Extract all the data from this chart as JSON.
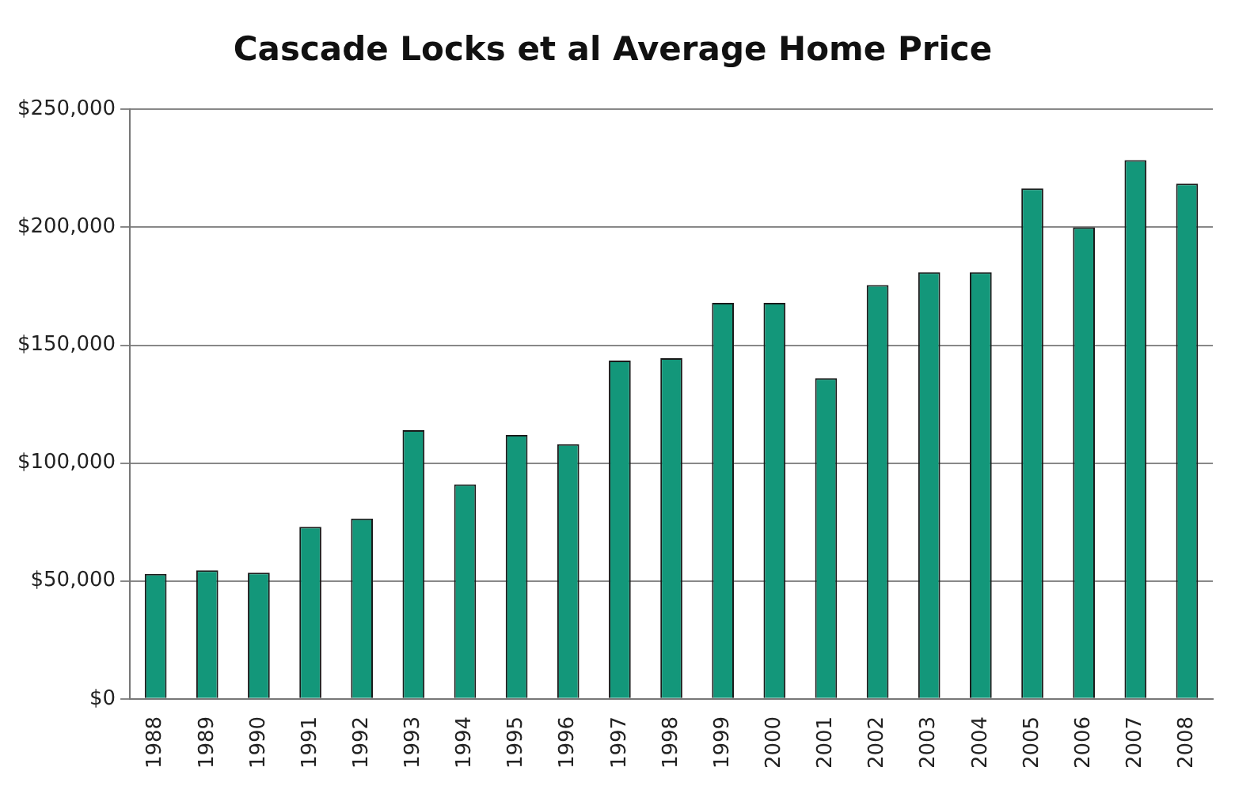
{
  "chart_data": {
    "type": "bar",
    "title": "Cascade Locks et al Average Home Price",
    "categories": [
      "1988",
      "1989",
      "1990",
      "1991",
      "1992",
      "1993",
      "1994",
      "1995",
      "1996",
      "1997",
      "1998",
      "1999",
      "2000",
      "2001",
      "2002",
      "2003",
      "2004",
      "2005",
      "2006",
      "2007",
      "2008"
    ],
    "values": [
      53000,
      54500,
      53500,
      73000,
      76500,
      114000,
      91000,
      112000,
      108000,
      143500,
      144500,
      168000,
      168000,
      136000,
      175500,
      181000,
      181000,
      216500,
      200000,
      228500,
      218500
    ],
    "color": "#13977a",
    "ylim": [
      0,
      250000
    ],
    "yticks": [
      {
        "value": 0,
        "label": "$0"
      },
      {
        "value": 50000,
        "label": "$50,000"
      },
      {
        "value": 100000,
        "label": "$100,000"
      },
      {
        "value": 150000,
        "label": "$150,000"
      },
      {
        "value": 200000,
        "label": "$200,000"
      },
      {
        "value": 250000,
        "label": "$250,000"
      }
    ],
    "grid": "y"
  }
}
